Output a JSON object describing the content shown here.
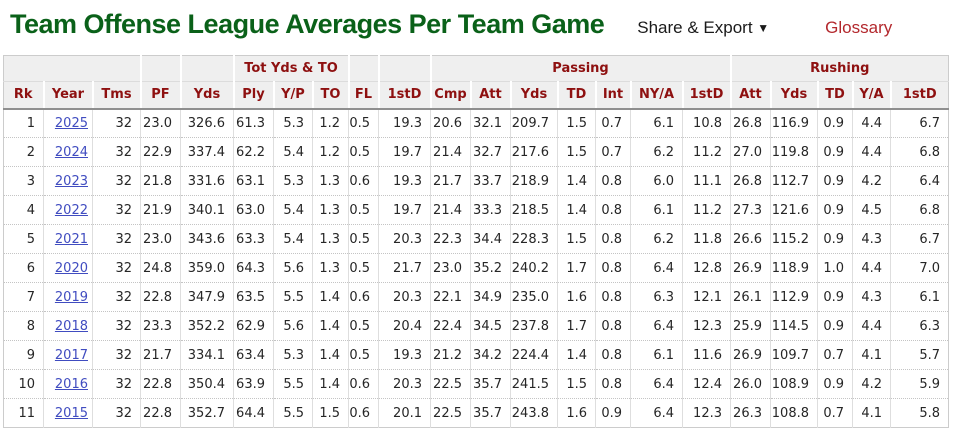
{
  "page": {
    "title": "Team Offense League Averages Per Team Game",
    "share_export_label": "Share & Export",
    "share_export_caret": "▼",
    "glossary_label": "Glossary"
  },
  "colors": {
    "title_green": "#0a6119",
    "header_red": "#8e1010",
    "glossary_red": "#b3282d",
    "link_blue": "#404cc0",
    "header_bg": "#efefef"
  },
  "table": {
    "groups": [
      {
        "label": "",
        "colspan": 3
      },
      {
        "label": "",
        "colspan": 1
      },
      {
        "label": "",
        "colspan": 1
      },
      {
        "label": "Tot Yds & TO",
        "colspan": 3
      },
      {
        "label": "",
        "colspan": 1
      },
      {
        "label": "",
        "colspan": 1
      },
      {
        "label": "Passing",
        "colspan": 7
      },
      {
        "label": "Rushing",
        "colspan": 5
      }
    ],
    "columns": [
      "Rk",
      "Year",
      "Tms",
      "PF",
      "Yds",
      "Ply",
      "Y/P",
      "TO",
      "FL",
      "1stD",
      "Cmp",
      "Att",
      "Yds",
      "TD",
      "Int",
      "NY/A",
      "1stD",
      "Att",
      "Yds",
      "TD",
      "Y/A",
      "1stD"
    ],
    "rows": [
      {
        "rank": "1",
        "year": "2025",
        "values": [
          "32",
          "23.0",
          "326.6",
          "61.3",
          "5.3",
          "1.2",
          "0.5",
          "19.3",
          "20.6",
          "32.1",
          "209.7",
          "1.5",
          "0.7",
          "6.1",
          "10.8",
          "26.8",
          "116.9",
          "0.9",
          "4.4",
          "6.7"
        ]
      },
      {
        "rank": "2",
        "year": "2024",
        "values": [
          "32",
          "22.9",
          "337.4",
          "62.2",
          "5.4",
          "1.2",
          "0.5",
          "19.7",
          "21.4",
          "32.7",
          "217.6",
          "1.5",
          "0.7",
          "6.2",
          "11.2",
          "27.0",
          "119.8",
          "0.9",
          "4.4",
          "6.8"
        ]
      },
      {
        "rank": "3",
        "year": "2023",
        "values": [
          "32",
          "21.8",
          "331.6",
          "63.1",
          "5.3",
          "1.3",
          "0.6",
          "19.3",
          "21.7",
          "33.7",
          "218.9",
          "1.4",
          "0.8",
          "6.0",
          "11.1",
          "26.8",
          "112.7",
          "0.9",
          "4.2",
          "6.4"
        ]
      },
      {
        "rank": "4",
        "year": "2022",
        "values": [
          "32",
          "21.9",
          "340.1",
          "63.0",
          "5.4",
          "1.3",
          "0.5",
          "19.7",
          "21.4",
          "33.3",
          "218.5",
          "1.4",
          "0.8",
          "6.1",
          "11.2",
          "27.3",
          "121.6",
          "0.9",
          "4.5",
          "6.8"
        ]
      },
      {
        "rank": "5",
        "year": "2021",
        "values": [
          "32",
          "23.0",
          "343.6",
          "63.3",
          "5.4",
          "1.3",
          "0.5",
          "20.3",
          "22.3",
          "34.4",
          "228.3",
          "1.5",
          "0.8",
          "6.2",
          "11.8",
          "26.6",
          "115.2",
          "0.9",
          "4.3",
          "6.7"
        ]
      },
      {
        "rank": "6",
        "year": "2020",
        "values": [
          "32",
          "24.8",
          "359.0",
          "64.3",
          "5.6",
          "1.3",
          "0.5",
          "21.7",
          "23.0",
          "35.2",
          "240.2",
          "1.7",
          "0.8",
          "6.4",
          "12.8",
          "26.9",
          "118.9",
          "1.0",
          "4.4",
          "7.0"
        ]
      },
      {
        "rank": "7",
        "year": "2019",
        "values": [
          "32",
          "22.8",
          "347.9",
          "63.5",
          "5.5",
          "1.4",
          "0.6",
          "20.3",
          "22.1",
          "34.9",
          "235.0",
          "1.6",
          "0.8",
          "6.3",
          "12.1",
          "26.1",
          "112.9",
          "0.9",
          "4.3",
          "6.1"
        ]
      },
      {
        "rank": "8",
        "year": "2018",
        "values": [
          "32",
          "23.3",
          "352.2",
          "62.9",
          "5.6",
          "1.4",
          "0.5",
          "20.4",
          "22.4",
          "34.5",
          "237.8",
          "1.7",
          "0.8",
          "6.4",
          "12.3",
          "25.9",
          "114.5",
          "0.9",
          "4.4",
          "6.3"
        ]
      },
      {
        "rank": "9",
        "year": "2017",
        "values": [
          "32",
          "21.7",
          "334.1",
          "63.4",
          "5.3",
          "1.4",
          "0.5",
          "19.3",
          "21.2",
          "34.2",
          "224.4",
          "1.4",
          "0.8",
          "6.1",
          "11.6",
          "26.9",
          "109.7",
          "0.7",
          "4.1",
          "5.7"
        ]
      },
      {
        "rank": "10",
        "year": "2016",
        "values": [
          "32",
          "22.8",
          "350.4",
          "63.9",
          "5.5",
          "1.4",
          "0.6",
          "20.3",
          "22.5",
          "35.7",
          "241.5",
          "1.5",
          "0.8",
          "6.4",
          "12.4",
          "26.0",
          "108.9",
          "0.9",
          "4.2",
          "5.9"
        ]
      },
      {
        "rank": "11",
        "year": "2015",
        "values": [
          "32",
          "22.8",
          "352.7",
          "64.4",
          "5.5",
          "1.5",
          "0.6",
          "20.1",
          "22.5",
          "35.7",
          "243.8",
          "1.6",
          "0.9",
          "6.4",
          "12.3",
          "26.3",
          "108.8",
          "0.7",
          "4.1",
          "5.8"
        ]
      }
    ]
  }
}
